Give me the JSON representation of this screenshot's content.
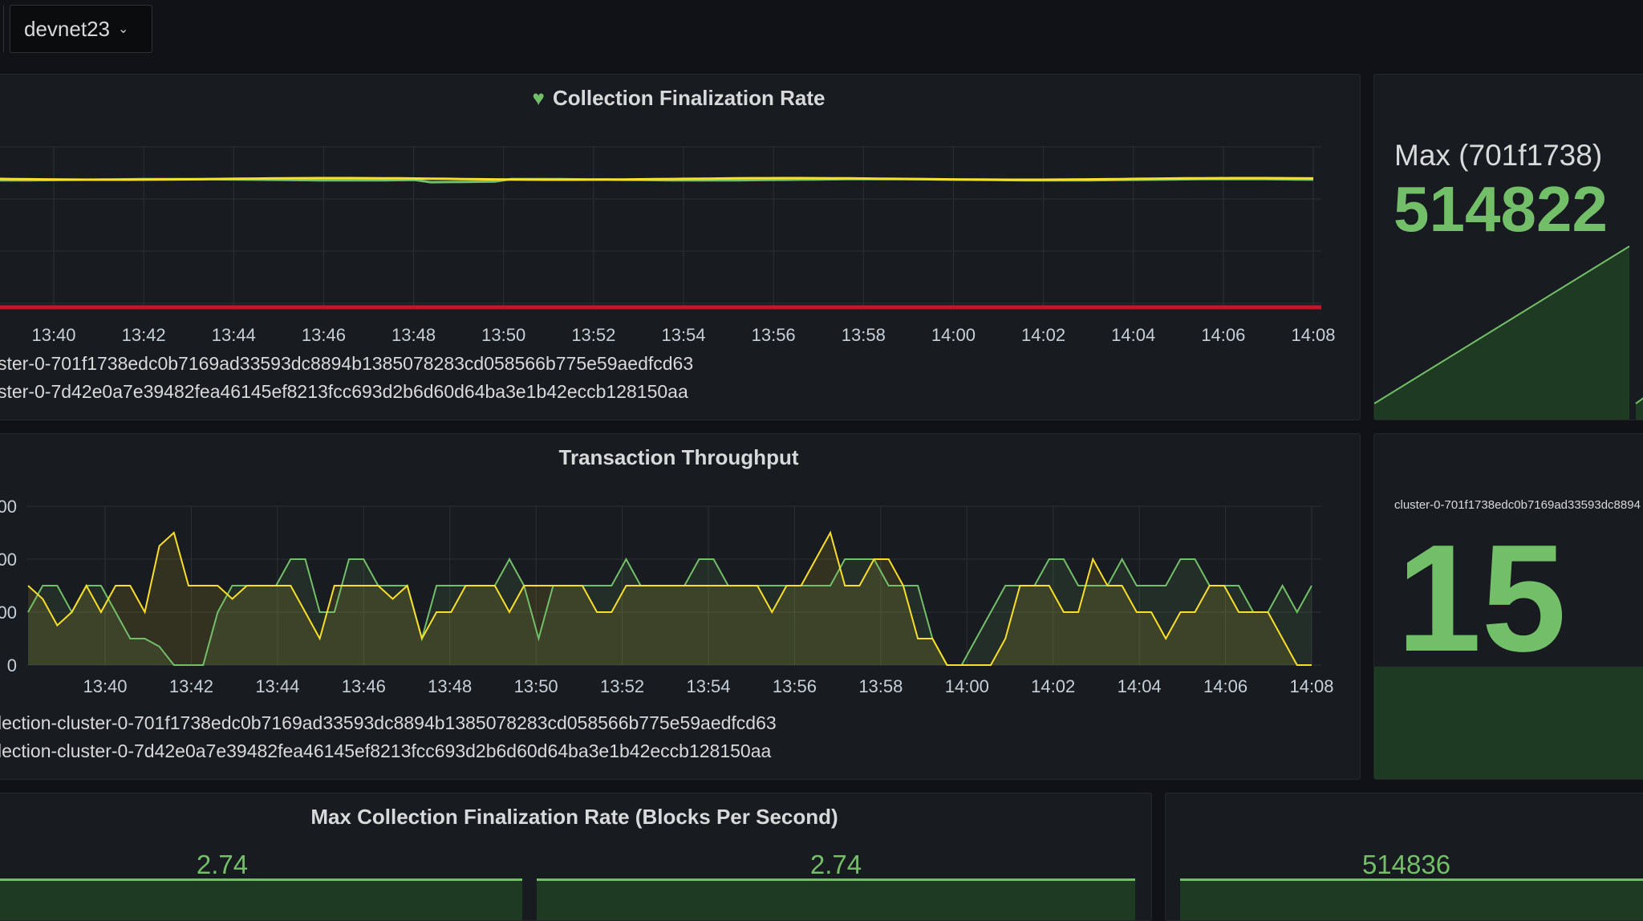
{
  "toolbar": {
    "datasource_label": "devnet23"
  },
  "panels": {
    "finalization": {
      "title": "Collection Finalization Rate",
      "x_ticks": [
        "13:40",
        "13:42",
        "13:44",
        "13:46",
        "13:48",
        "13:50",
        "13:52",
        "13:54",
        "13:56",
        "13:58",
        "14:00",
        "14:02",
        "14:04",
        "14:06",
        "14:08"
      ],
      "legend": [
        "ster-0-701f1738edc0b7169ad33593dc8894b1385078283cd058566b775e59aedfcd63",
        "ster-0-7d42e0a7e39482fea46145ef8213fcc693d2b6d60d64ba3e1b42eccb128150aa"
      ],
      "colors": {
        "green": "#73bf69",
        "yellow": "#fade2a",
        "red": "#c4162a"
      }
    },
    "max_stat": {
      "title": "Max (701f1738)",
      "value": "514822"
    },
    "throughput": {
      "title": "Transaction Throughput",
      "y_ticks": [
        "00",
        "00",
        "00",
        "0"
      ],
      "x_ticks": [
        "13:40",
        "13:42",
        "13:44",
        "13:46",
        "13:48",
        "13:50",
        "13:52",
        "13:54",
        "13:56",
        "13:58",
        "14:00",
        "14:02",
        "14:04",
        "14:06",
        "14:08"
      ],
      "legend": [
        "lection-cluster-0-701f1738edc0b7169ad33593dc8894b1385078283cd058566b775e59aedfcd63",
        "lection-cluster-0-7d42e0a7e39482fea46145ef8213fcc693d2b6d60d64ba3e1b42eccb128150aa"
      ]
    },
    "cluster_stat": {
      "label": "cluster-0-701f1738edc0b7169ad33593dc8894",
      "value": "15"
    },
    "max_rate": {
      "title": "Max Collection Finalization Rate (Blocks Per Second)",
      "values": [
        "2.74",
        "2.74"
      ]
    },
    "bottom_right": {
      "value": "514836"
    }
  }
}
